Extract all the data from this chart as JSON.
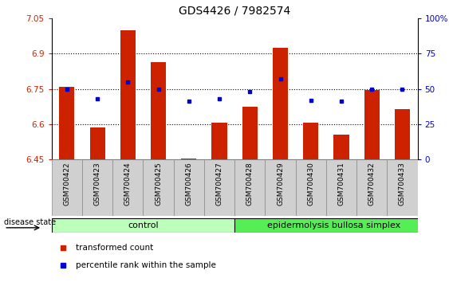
{
  "title": "GDS4426 / 7982574",
  "samples": [
    "GSM700422",
    "GSM700423",
    "GSM700424",
    "GSM700425",
    "GSM700426",
    "GSM700427",
    "GSM700428",
    "GSM700429",
    "GSM700430",
    "GSM700431",
    "GSM700432",
    "GSM700433"
  ],
  "bar_values": [
    6.76,
    6.585,
    7.0,
    6.865,
    6.455,
    6.605,
    6.675,
    6.925,
    6.605,
    6.555,
    6.745,
    6.665
  ],
  "percentile_values": [
    50,
    43,
    55,
    50,
    41,
    43,
    48,
    57,
    42,
    41,
    50,
    50
  ],
  "ylim_left": [
    6.45,
    7.05
  ],
  "ylim_right": [
    0,
    100
  ],
  "yticks_left": [
    6.45,
    6.6,
    6.75,
    6.9,
    7.05
  ],
  "yticks_right": [
    0,
    25,
    50,
    75,
    100
  ],
  "ytick_labels_right": [
    "0",
    "25",
    "50",
    "75",
    "100%"
  ],
  "bar_color": "#cc2200",
  "dot_color": "#0000cc",
  "control_samples": 6,
  "group_labels": [
    "control",
    "epidermolysis bullosa simplex"
  ],
  "group_colors": [
    "#bbffbb",
    "#55ee55"
  ],
  "disease_state_label": "disease state",
  "legend_bar_label": "transformed count",
  "legend_dot_label": "percentile rank within the sample",
  "background_color": "#ffffff",
  "plot_bg_color": "#ffffff",
  "xtick_bg_color": "#d0d0d0",
  "bar_width": 0.5,
  "base_value": 6.45,
  "grid_yticks": [
    6.6,
    6.75,
    6.9
  ]
}
